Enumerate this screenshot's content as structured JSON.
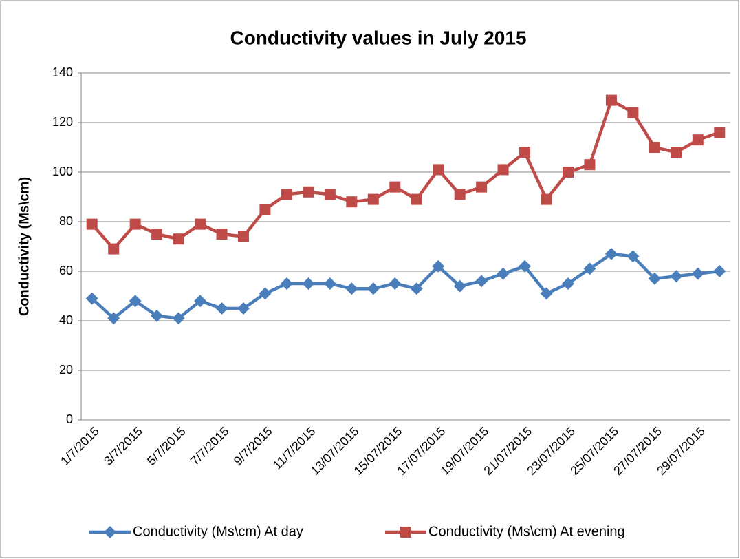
{
  "chart_data": {
    "type": "line",
    "title": "Conductivity values in July 2015",
    "y_label": "Conductivity (Ms\\cm)",
    "categories": [
      "1/7/2015",
      null,
      "3/7/2015",
      null,
      "5/7/2015",
      null,
      "7/7/2015",
      null,
      "9/7/2015",
      null,
      "11/7/2015",
      null,
      "13/07/2015",
      null,
      "15/07/2015",
      null,
      "17/07/2015",
      null,
      "19/07/2015",
      null,
      "21/07/2015",
      null,
      "23/07/2015",
      null,
      "25/07/2015",
      null,
      "27/07/2015",
      null,
      "29/07/2015",
      null
    ],
    "series": [
      {
        "name": "Conductivity (Ms\\cm) At day",
        "color": "#4a7ebb",
        "marker": "diamond",
        "values": [
          49,
          41,
          48,
          42,
          41,
          48,
          45,
          45,
          51,
          55,
          55,
          55,
          53,
          53,
          55,
          53,
          62,
          54,
          56,
          59,
          62,
          51,
          55,
          61,
          67,
          66,
          57,
          58,
          59,
          60
        ]
      },
      {
        "name": "Conductivity (Ms\\cm) At evening",
        "color": "#be4b48",
        "marker": "square",
        "values": [
          79,
          69,
          79,
          75,
          73,
          79,
          75,
          74,
          85,
          91,
          92,
          91,
          88,
          89,
          94,
          89,
          101,
          91,
          94,
          101,
          108,
          89,
          100,
          103,
          129,
          124,
          110,
          108,
          113,
          116
        ]
      }
    ],
    "ylim": [
      0,
      140
    ],
    "yticks": [
      0,
      20,
      40,
      60,
      80,
      100,
      120,
      140
    ],
    "grid": true,
    "legend": "bottom"
  }
}
